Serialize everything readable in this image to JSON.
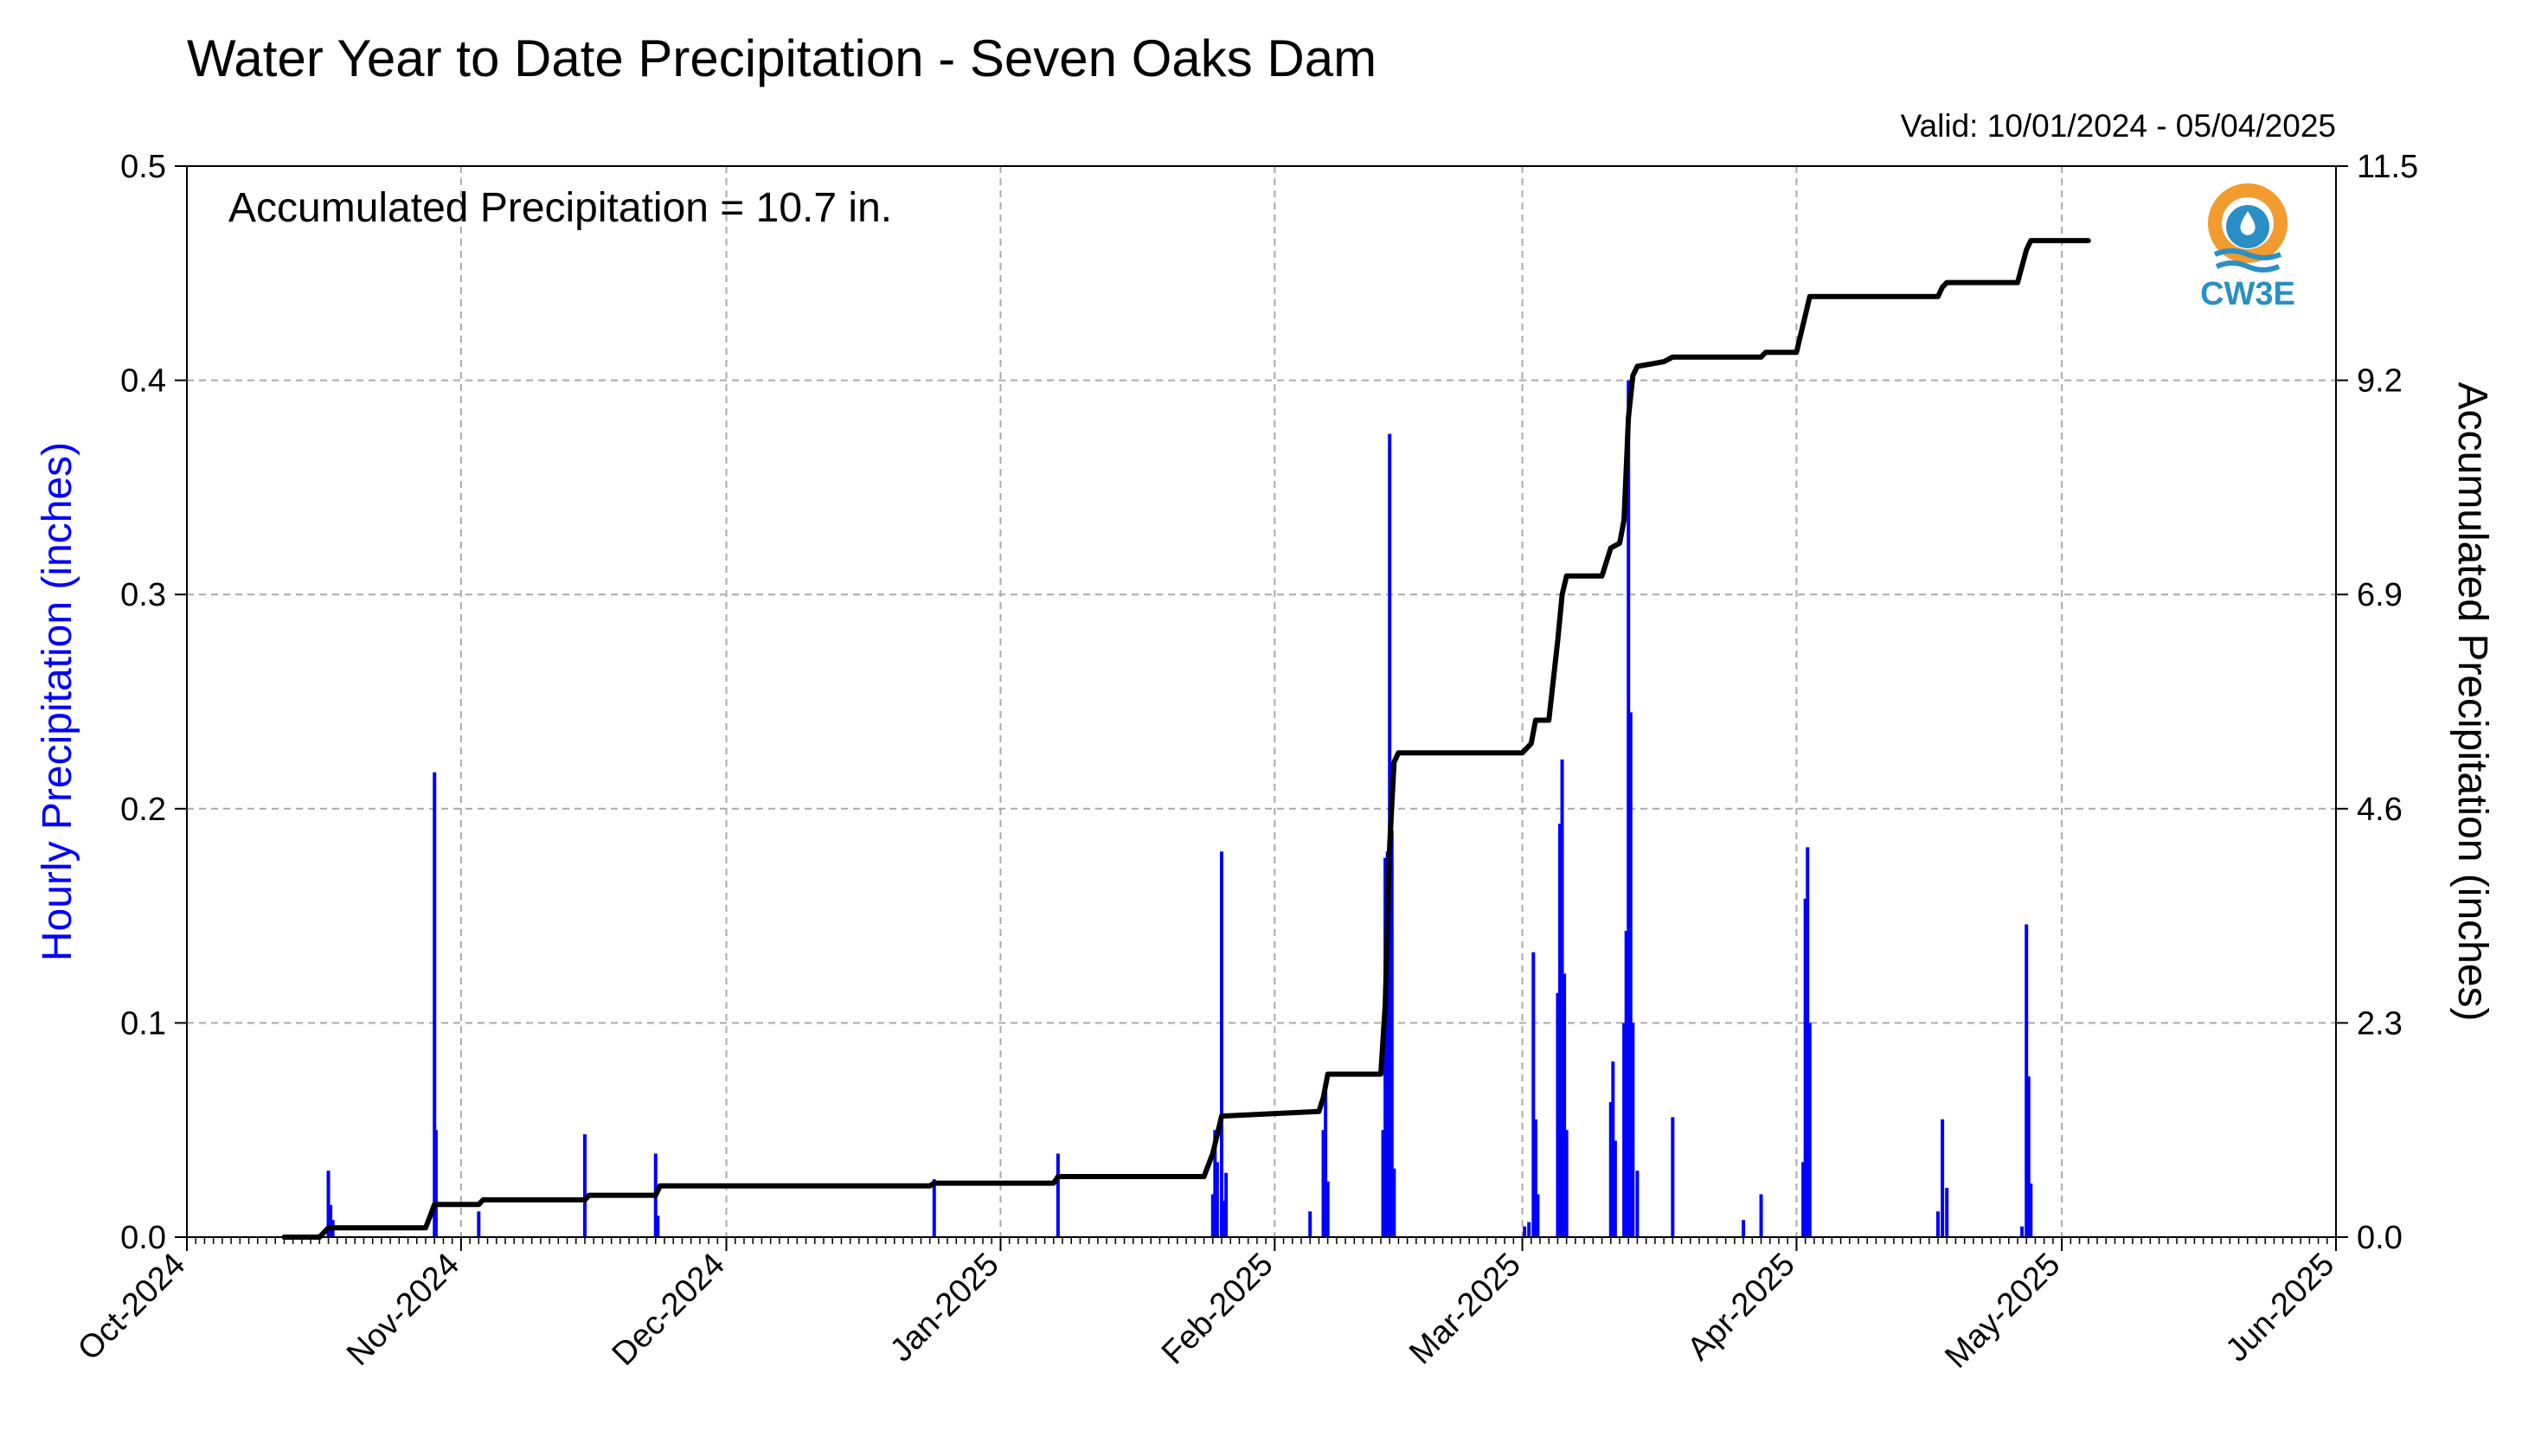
{
  "chart_data": {
    "type": "bar",
    "title": "Water Year to Date Precipitation - Seven Oaks Dam",
    "subtitle": "Valid: 10/01/2024 - 05/04/2025",
    "annotation": "Accumulated Precipitation = 10.7 in.",
    "logo_text": "CW3E",
    "ylabel": "Hourly Precipitation (inches)",
    "ylabel_color": "#0000ff",
    "y2label": "Accumulated Precipitation (inches)",
    "x_range": [
      "2024-10-01",
      "2025-06-01"
    ],
    "ylim": [
      0,
      0.5
    ],
    "y2lim": [
      0,
      11.5
    ],
    "y_ticks": [
      "0.0",
      "0.1",
      "0.2",
      "0.3",
      "0.4",
      "0.5"
    ],
    "y2_ticks": [
      "0.0",
      "2.3",
      "4.6",
      "6.9",
      "9.2",
      "11.5"
    ],
    "x_tick_labels": [
      "Oct-2024",
      "Nov-2024",
      "Dec-2024",
      "Jan-2025",
      "Feb-2025",
      "Mar-2025",
      "Apr-2025",
      "May-2025",
      "Jun-2025"
    ],
    "x_tick_dates": [
      "2024-10-01",
      "2024-11-01",
      "2024-12-01",
      "2025-01-01",
      "2025-02-01",
      "2025-03-01",
      "2025-04-01",
      "2025-05-01",
      "2025-06-01"
    ],
    "grid": true,
    "series": [
      {
        "name": "Hourly Precipitation",
        "type": "bar",
        "axis": "left",
        "color": "#0000ff",
        "points": [
          [
            "2024-10-17T00:00",
            0.031
          ],
          [
            "2024-10-17T06:00",
            0.015
          ],
          [
            "2024-10-17T12:00",
            0.008
          ],
          [
            "2024-10-29T00:00",
            0.217
          ],
          [
            "2024-10-29T04:00",
            0.05
          ],
          [
            "2024-11-03T00:00",
            0.012
          ],
          [
            "2024-11-15T00:00",
            0.048
          ],
          [
            "2024-11-23T00:00",
            0.039
          ],
          [
            "2024-11-23T06:00",
            0.01
          ],
          [
            "2024-12-24T12:00",
            0.027
          ],
          [
            "2025-01-07T12:00",
            0.039
          ],
          [
            "2025-01-25T00:00",
            0.02
          ],
          [
            "2025-01-25T06:00",
            0.05
          ],
          [
            "2025-01-25T12:00",
            0.035
          ],
          [
            "2025-01-26T00:00",
            0.18
          ],
          [
            "2025-01-26T06:00",
            0.017
          ],
          [
            "2025-01-26T12:00",
            0.03
          ],
          [
            "2025-02-05T00:00",
            0.012
          ],
          [
            "2025-02-06T12:00",
            0.05
          ],
          [
            "2025-02-06T18:00",
            0.068
          ],
          [
            "2025-02-07T00:00",
            0.026
          ],
          [
            "2025-02-13T06:00",
            0.05
          ],
          [
            "2025-02-13T12:00",
            0.177
          ],
          [
            "2025-02-13T18:00",
            0.18
          ],
          [
            "2025-02-14T00:00",
            0.375
          ],
          [
            "2025-02-14T06:00",
            0.19
          ],
          [
            "2025-02-14T12:00",
            0.032
          ],
          [
            "2025-03-01T06:00",
            0.005
          ],
          [
            "2025-03-01T18:00",
            0.007
          ],
          [
            "2025-03-02T06:00",
            0.133
          ],
          [
            "2025-03-02T12:00",
            0.055
          ],
          [
            "2025-03-02T18:00",
            0.02
          ],
          [
            "2025-03-05T00:00",
            0.114
          ],
          [
            "2025-03-05T06:00",
            0.193
          ],
          [
            "2025-03-05T12:00",
            0.223
          ],
          [
            "2025-03-05T18:00",
            0.123
          ],
          [
            "2025-03-06T00:00",
            0.05
          ],
          [
            "2025-03-11T00:00",
            0.063
          ],
          [
            "2025-03-11T06:00",
            0.082
          ],
          [
            "2025-03-11T12:00",
            0.045
          ],
          [
            "2025-03-12T12:00",
            0.1
          ],
          [
            "2025-03-12T18:00",
            0.143
          ],
          [
            "2025-03-13T00:00",
            0.4
          ],
          [
            "2025-03-13T06:00",
            0.245
          ],
          [
            "2025-03-13T12:00",
            0.1
          ],
          [
            "2025-03-14T00:00",
            0.031
          ],
          [
            "2025-03-18T00:00",
            0.056
          ],
          [
            "2025-03-26T00:00",
            0.008
          ],
          [
            "2025-03-28T00:00",
            0.02
          ],
          [
            "2025-04-01T18:00",
            0.035
          ],
          [
            "2025-04-02T00:00",
            0.158
          ],
          [
            "2025-04-02T06:00",
            0.182
          ],
          [
            "2025-04-02T12:00",
            0.1
          ],
          [
            "2025-04-17T00:00",
            0.012
          ],
          [
            "2025-04-17T12:00",
            0.055
          ],
          [
            "2025-04-18T00:00",
            0.023
          ],
          [
            "2025-04-26T12:00",
            0.005
          ],
          [
            "2025-04-27T00:00",
            0.146
          ],
          [
            "2025-04-27T06:00",
            0.075
          ],
          [
            "2025-04-27T12:00",
            0.025
          ]
        ]
      },
      {
        "name": "Accumulated Precipitation",
        "type": "line",
        "axis": "right",
        "color": "#000000",
        "points": [
          [
            "2024-10-12",
            0.0
          ],
          [
            "2024-10-16",
            0.0
          ],
          [
            "2024-10-17",
            0.1
          ],
          [
            "2024-10-28",
            0.1
          ],
          [
            "2024-10-29",
            0.35
          ],
          [
            "2024-11-03",
            0.35
          ],
          [
            "2024-11-03T12:00",
            0.4
          ],
          [
            "2024-11-15",
            0.4
          ],
          [
            "2024-11-15T12:00",
            0.45
          ],
          [
            "2024-11-23",
            0.45
          ],
          [
            "2024-11-23T12:00",
            0.55
          ],
          [
            "2024-12-24",
            0.55
          ],
          [
            "2024-12-24T12:00",
            0.58
          ],
          [
            "2025-01-07",
            0.58
          ],
          [
            "2025-01-07T12:00",
            0.65
          ],
          [
            "2025-01-24",
            0.65
          ],
          [
            "2025-01-25",
            0.9
          ],
          [
            "2025-01-26",
            1.3
          ],
          [
            "2025-02-06",
            1.35
          ],
          [
            "2025-02-06T12:00",
            1.5
          ],
          [
            "2025-02-07",
            1.75
          ],
          [
            "2025-02-13",
            1.75
          ],
          [
            "2025-02-13T12:00",
            2.5
          ],
          [
            "2025-02-14",
            4.2
          ],
          [
            "2025-02-14T12:00",
            5.1
          ],
          [
            "2025-02-15",
            5.2
          ],
          [
            "2025-03-01",
            5.2
          ],
          [
            "2025-03-02",
            5.3
          ],
          [
            "2025-03-02T12:00",
            5.55
          ],
          [
            "2025-03-04",
            5.55
          ],
          [
            "2025-03-05",
            6.4
          ],
          [
            "2025-03-05T12:00",
            6.9
          ],
          [
            "2025-03-06",
            7.1
          ],
          [
            "2025-03-10",
            7.1
          ],
          [
            "2025-03-11",
            7.4
          ],
          [
            "2025-03-12",
            7.45
          ],
          [
            "2025-03-12T12:00",
            7.7
          ],
          [
            "2025-03-13",
            8.8
          ],
          [
            "2025-03-13T12:00",
            9.25
          ],
          [
            "2025-03-14",
            9.35
          ],
          [
            "2025-03-17",
            9.4
          ],
          [
            "2025-03-18",
            9.45
          ],
          [
            "2025-03-28",
            9.45
          ],
          [
            "2025-03-28T12:00",
            9.5
          ],
          [
            "2025-04-01",
            9.5
          ],
          [
            "2025-04-02",
            9.9
          ],
          [
            "2025-04-02T12:00",
            10.1
          ],
          [
            "2025-04-17",
            10.1
          ],
          [
            "2025-04-17T12:00",
            10.2
          ],
          [
            "2025-04-18",
            10.25
          ],
          [
            "2025-04-26",
            10.25
          ],
          [
            "2025-04-27",
            10.6
          ],
          [
            "2025-04-27T12:00",
            10.7
          ],
          [
            "2025-05-04",
            10.7
          ]
        ]
      }
    ]
  }
}
